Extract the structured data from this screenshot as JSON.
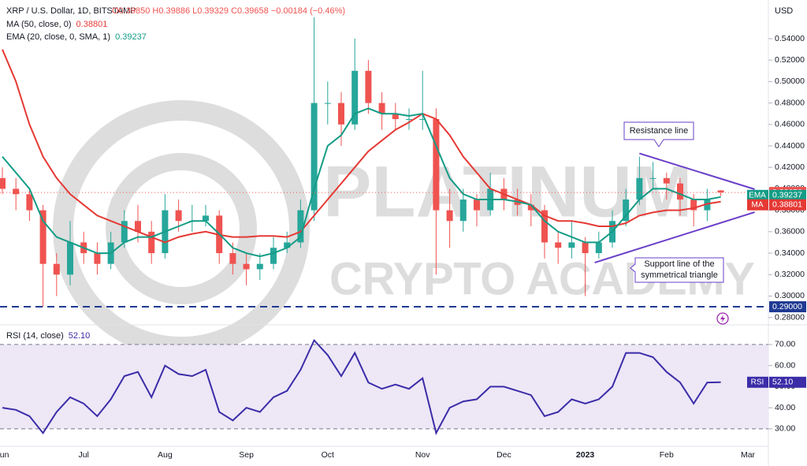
{
  "header": {
    "title": "XRP / U.S. Dollar, 1D, BITSTAMP",
    "ohlc": "O0.39850 H0.39886 L0.39329 C0.39658 −0.00184 (−0.46%)",
    "currency": "USD"
  },
  "watermark": {
    "line1": "PLATINUM",
    "line2": "CRYPTO ACADEMY"
  },
  "chart_data": [
    {
      "type": "candlestick",
      "categories": [
        "Jun",
        null,
        null,
        null,
        null,
        null,
        "Jul",
        null,
        null,
        null,
        null,
        null,
        "Aug",
        null,
        null,
        null,
        null,
        null,
        "Sep",
        null,
        null,
        null,
        null,
        null,
        "Oct",
        null,
        null,
        null,
        null,
        null,
        null,
        "Nov",
        null,
        null,
        null,
        null,
        null,
        "Dec",
        null,
        null,
        null,
        null,
        null,
        "2023",
        null,
        null,
        null,
        null,
        null,
        "Feb",
        null,
        null,
        null,
        null,
        null,
        "Mar"
      ],
      "open": [
        0.41,
        0.4,
        0.395,
        0.38,
        0.33,
        0.32,
        0.35,
        0.34,
        0.33,
        0.35,
        0.37,
        0.36,
        0.34,
        0.38,
        0.37,
        0.37,
        0.375,
        0.34,
        0.33,
        0.325,
        0.33,
        0.345,
        0.35,
        0.38,
        0.48,
        0.48,
        0.46,
        0.51,
        0.48,
        0.47,
        0.465,
        0.465,
        0.465,
        0.38,
        0.37,
        0.39,
        0.38,
        0.4,
        0.39,
        0.385,
        0.38,
        0.35,
        0.345,
        0.35,
        0.34,
        0.35,
        0.37,
        0.39,
        0.41,
        0.41,
        0.405,
        0.39,
        0.38,
        0.3985,
        null,
        null
      ],
      "high": [
        0.42,
        0.41,
        0.4,
        0.385,
        0.34,
        0.37,
        0.36,
        0.35,
        0.36,
        0.38,
        0.385,
        0.37,
        0.395,
        0.39,
        0.385,
        0.385,
        0.38,
        0.35,
        0.34,
        0.34,
        0.355,
        0.36,
        0.39,
        0.56,
        0.5,
        0.49,
        0.54,
        0.52,
        0.49,
        0.48,
        0.475,
        0.51,
        0.475,
        0.4,
        0.4,
        0.395,
        0.415,
        0.41,
        0.4,
        0.395,
        0.385,
        0.36,
        0.37,
        0.355,
        0.36,
        0.38,
        0.4,
        0.43,
        0.425,
        0.415,
        0.41,
        0.395,
        0.4,
        0.39886,
        null,
        null
      ],
      "low": [
        0.395,
        0.38,
        0.37,
        0.29,
        0.3,
        0.31,
        0.33,
        0.32,
        0.325,
        0.345,
        0.35,
        0.33,
        0.335,
        0.36,
        0.36,
        0.365,
        0.33,
        0.32,
        0.31,
        0.315,
        0.325,
        0.34,
        0.345,
        0.37,
        0.46,
        0.44,
        0.455,
        0.47,
        0.455,
        0.455,
        0.455,
        0.455,
        0.32,
        0.345,
        0.36,
        0.365,
        0.375,
        0.38,
        0.375,
        0.365,
        0.335,
        0.33,
        0.335,
        0.3,
        0.335,
        0.345,
        0.365,
        0.385,
        0.4,
        0.39,
        0.375,
        0.365,
        0.37,
        0.39329,
        null,
        null
      ],
      "close": [
        0.4,
        0.395,
        0.38,
        0.33,
        0.32,
        0.35,
        0.34,
        0.33,
        0.35,
        0.37,
        0.36,
        0.34,
        0.38,
        0.37,
        0.37,
        0.375,
        0.34,
        0.33,
        0.325,
        0.33,
        0.345,
        0.35,
        0.38,
        0.48,
        0.48,
        0.46,
        0.51,
        0.48,
        0.47,
        0.465,
        0.465,
        0.465,
        0.38,
        0.37,
        0.39,
        0.38,
        0.4,
        0.39,
        0.385,
        0.38,
        0.35,
        0.345,
        0.35,
        0.34,
        0.35,
        0.37,
        0.39,
        0.41,
        0.41,
        0.405,
        0.39,
        0.38,
        0.39,
        0.39658,
        null,
        null
      ],
      "last_close_label": "0.39658",
      "up_color": "#26a69a",
      "down_color": "#ef5350",
      "series": [
        {
          "name": "MA (50, close, 0)",
          "tag": "MA",
          "color": "#e53935",
          "last_label": "0.38801",
          "values": [
            0.53,
            0.5,
            0.46,
            0.43,
            0.41,
            0.395,
            0.385,
            0.375,
            0.37,
            0.365,
            0.36,
            0.355,
            0.35,
            0.355,
            0.358,
            0.36,
            0.357,
            0.355,
            0.355,
            0.356,
            0.356,
            0.355,
            0.36,
            0.375,
            0.39,
            0.405,
            0.42,
            0.435,
            0.445,
            0.455,
            0.462,
            0.47,
            0.465,
            0.45,
            0.43,
            0.415,
            0.4,
            0.395,
            0.39,
            0.385,
            0.375,
            0.37,
            0.37,
            0.368,
            0.365,
            0.365,
            0.368,
            0.375,
            0.378,
            0.38,
            0.38,
            0.382,
            0.386,
            0.38801,
            null,
            null
          ]
        },
        {
          "name": "EMA (20, close, 0, SMA, 1)",
          "tag": "EMA",
          "color": "#139c86",
          "last_label": "0.39237",
          "values": [
            0.43,
            0.415,
            0.4,
            0.37,
            0.355,
            0.35,
            0.345,
            0.34,
            0.34,
            0.35,
            0.355,
            0.355,
            0.36,
            0.365,
            0.37,
            0.37,
            0.358,
            0.345,
            0.34,
            0.337,
            0.34,
            0.345,
            0.355,
            0.4,
            0.44,
            0.45,
            0.47,
            0.475,
            0.47,
            0.47,
            0.468,
            0.47,
            0.44,
            0.41,
            0.395,
            0.39,
            0.39,
            0.39,
            0.388,
            0.385,
            0.37,
            0.36,
            0.355,
            0.35,
            0.35,
            0.36,
            0.375,
            0.39,
            0.4,
            0.4,
            0.395,
            0.39,
            0.39,
            0.39237,
            null,
            null
          ]
        }
      ],
      "hline": {
        "value": 0.29,
        "label": "0.29000",
        "color": "#1f3a93"
      },
      "trendlines": [
        {
          "label": "Resistance line",
          "start": [
            47,
            0.433
          ],
          "end": [
            55.5,
            0.3996
          ],
          "color": "#6a3fc8"
        },
        {
          "label": [
            "Support line of the",
            "symmetrical triangle"
          ],
          "start": [
            43.7,
            0.3312
          ],
          "end": [
            55.5,
            0.3782
          ],
          "color": "#6a3fc8"
        }
      ],
      "ylim": [
        0.2746,
        0.5687
      ],
      "yticks": [
        {
          "value": 0.28,
          "label": "0.28000"
        },
        {
          "value": 0.3,
          "label": "0.30000"
        },
        {
          "value": 0.32,
          "label": "0.32000"
        },
        {
          "value": 0.34,
          "label": "0.34000"
        },
        {
          "value": 0.36,
          "label": "0.36000"
        },
        {
          "value": 0.38,
          "label": "0.38000"
        },
        {
          "value": 0.4,
          "label": "0.40000"
        },
        {
          "value": 0.42,
          "label": "0.42000"
        },
        {
          "value": 0.44,
          "label": "0.44000"
        },
        {
          "value": 0.46,
          "label": "0.46000"
        },
        {
          "value": 0.48,
          "label": "0.48000"
        },
        {
          "value": 0.5,
          "label": "0.50000"
        },
        {
          "value": 0.52,
          "label": "0.52000"
        },
        {
          "value": 0.54,
          "label": "0.54000"
        }
      ]
    },
    {
      "type": "line",
      "series": [
        {
          "name": "RSI (14, close)",
          "tag": "RSI",
          "color": "#3b2ca8",
          "last_label": "52.10",
          "values": [
            40,
            39,
            36,
            28,
            38,
            45,
            42,
            36,
            44,
            55,
            57,
            45,
            60,
            56,
            55,
            58,
            38,
            34,
            40,
            38,
            45,
            48,
            58,
            72,
            65,
            55,
            66,
            52,
            49,
            51,
            49,
            54,
            28,
            40,
            43,
            44,
            50,
            50,
            48,
            46,
            36,
            38,
            44,
            42,
            44,
            50,
            66,
            66,
            64,
            57,
            52,
            42,
            52,
            52.1,
            null,
            null
          ]
        }
      ],
      "band": [
        30,
        70
      ],
      "band_color": "#ede7f6",
      "ylim": [
        22.1,
        78.2
      ],
      "yticks": [
        {
          "value": 30,
          "label": "30.00"
        },
        {
          "value": 40,
          "label": "40.00"
        },
        {
          "value": 50,
          "label": "50.00"
        },
        {
          "value": 60,
          "label": "60.00"
        },
        {
          "value": 70,
          "label": "70.00"
        }
      ]
    }
  ]
}
